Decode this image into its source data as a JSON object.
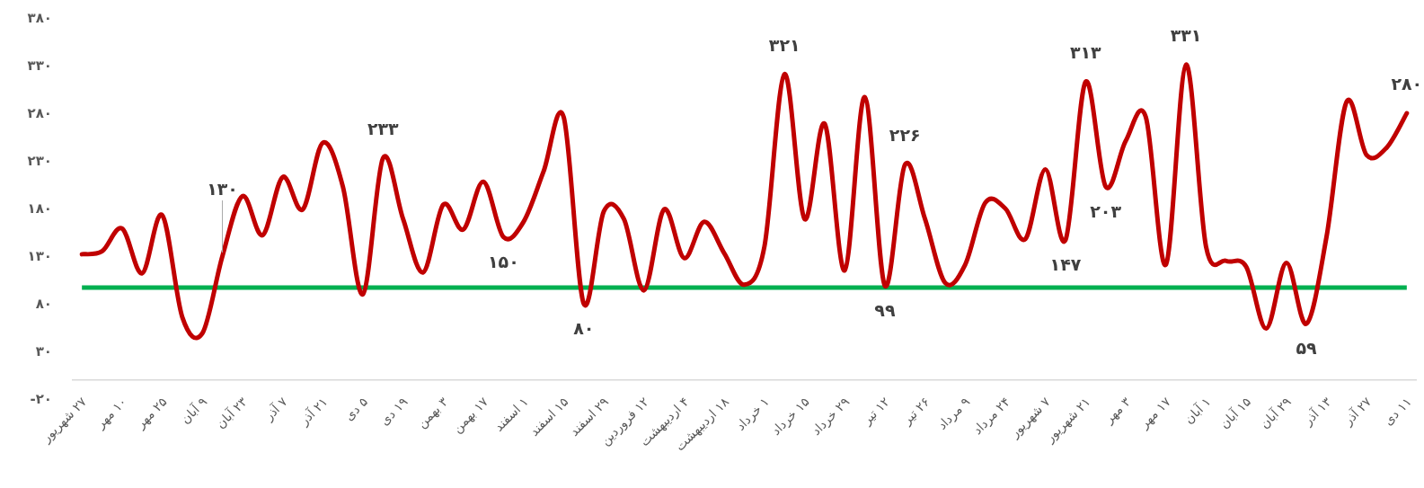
{
  "chart_data": {
    "type": "line",
    "categories": [
      "۲۷ شهریور",
      null,
      "۱۰ مهر",
      null,
      "۲۵ مهر",
      null,
      "۹ آبان",
      null,
      "۲۳ آبان",
      null,
      "۷ آذر",
      null,
      "۲۱ آذر",
      null,
      "۵ دی",
      null,
      "۱۹ دی",
      null,
      "۳ بهمن",
      null,
      "۱۷ بهمن",
      null,
      "۱ اسفند",
      null,
      "۱۵ اسفند",
      null,
      "۲۹ اسفند",
      null,
      "۱۲ فروردین",
      null,
      "۴ اردیبهشت",
      null,
      "۱۸ اردیبهشت",
      null,
      "۱ خرداد",
      null,
      "۱۵ خرداد",
      null,
      "۲۹ خرداد",
      null,
      "۱۲ تیر",
      null,
      "۲۶ تیر",
      null,
      "۹ مرداد",
      null,
      "۲۴ مرداد",
      null,
      "۷ شهریور",
      null,
      "۲۱ شهریور",
      null,
      "۳ مهر",
      null,
      "۱۷ مهر",
      null,
      "۱ آبان",
      null,
      "۱۵ آبان",
      null,
      "۲۹ آبان",
      null,
      "۱۳ آذر",
      null,
      "۲۷ آذر",
      null,
      "۱۱ دی"
    ],
    "series": [
      {
        "color": "#c00000",
        "values": [
          132,
          135,
          159,
          112,
          173,
          66,
          49,
          130,
          193,
          152,
          213,
          179,
          249,
          203,
          90,
          233,
          169,
          113,
          184,
          158,
          208,
          150,
          166,
          219,
          276,
          80,
          177,
          169,
          94,
          179,
          128,
          166,
          133,
          100,
          140,
          321,
          169,
          269,
          115,
          297,
          99,
          226,
          169,
          102,
          121,
          186,
          180,
          148,
          221,
          147,
          313,
          203,
          251,
          276,
          121,
          331,
          140,
          125,
          119,
          54,
          123,
          59,
          150,
          292,
          236,
          244,
          280
        ],
        "value_labels": [
          null,
          null,
          null,
          null,
          null,
          null,
          null,
          "۱۳۰",
          null,
          null,
          null,
          null,
          null,
          null,
          null,
          "۲۳۳",
          null,
          null,
          null,
          null,
          null,
          "۱۵۰",
          null,
          null,
          null,
          "۸۰",
          null,
          null,
          null,
          null,
          null,
          null,
          null,
          null,
          null,
          "۳۲۱",
          null,
          null,
          null,
          null,
          "۹۹",
          "۲۲۶",
          null,
          null,
          null,
          null,
          null,
          null,
          null,
          "۱۴۷",
          "۳۱۳",
          "۲۰۳",
          null,
          null,
          null,
          "۳۳۱",
          null,
          null,
          null,
          null,
          null,
          "۵۹",
          null,
          null,
          null,
          null,
          "۲۸۰"
        ]
      }
    ],
    "ylim": [
      -20,
      380
    ],
    "yticks": [
      {
        "value": -20,
        "label": "-۲۰"
      },
      {
        "value": 30,
        "label": "۳۰"
      },
      {
        "value": 80,
        "label": "۸۰"
      },
      {
        "value": 130,
        "label": "۱۳۰"
      },
      {
        "value": 180,
        "label": "۱۸۰"
      },
      {
        "value": 230,
        "label": "۲۳۰"
      },
      {
        "value": 280,
        "label": "۲۸۰"
      },
      {
        "value": 330,
        "label": "۳۳۰"
      },
      {
        "value": 380,
        "label": "۳۸۰"
      }
    ],
    "ref_lines": [
      {
        "axis": "y",
        "value": 97,
        "color": "#00b050"
      }
    ],
    "grid": false,
    "marker": "none",
    "line_style": "solid"
  }
}
